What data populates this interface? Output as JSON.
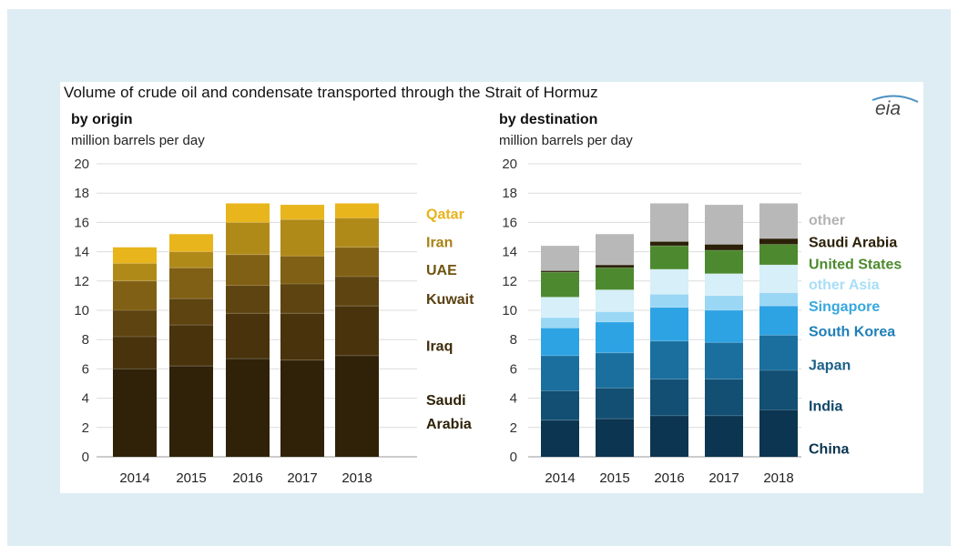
{
  "title": "Volume of crude oil and condensate transported through the Strait of Hormuz",
  "logo_text": "eia",
  "chart_data": [
    {
      "type": "bar",
      "stacked": true,
      "title": "by origin",
      "ylabel": "million barrels per day",
      "ylim": [
        0,
        20
      ],
      "yticks": [
        0,
        2,
        4,
        6,
        8,
        10,
        12,
        14,
        16,
        18,
        20
      ],
      "grid": true,
      "legend_placement": "right (inline labels)",
      "categories": [
        "2014",
        "2015",
        "2016",
        "2017",
        "2018"
      ],
      "series": [
        {
          "name": "Saudi Arabia",
          "color": "#2f2208",
          "values": [
            6.0,
            6.2,
            6.7,
            6.6,
            6.9
          ]
        },
        {
          "name": "Iraq",
          "color": "#49330c",
          "values": [
            2.2,
            2.8,
            3.1,
            3.2,
            3.4
          ]
        },
        {
          "name": "Kuwait",
          "color": "#5e4410",
          "values": [
            1.8,
            1.8,
            1.9,
            2.0,
            2.0
          ]
        },
        {
          "name": "UAE",
          "color": "#806014",
          "values": [
            2.0,
            2.1,
            2.1,
            1.9,
            2.0
          ]
        },
        {
          "name": "Iran",
          "color": "#b08a19",
          "values": [
            1.2,
            1.1,
            2.2,
            2.5,
            2.0
          ]
        },
        {
          "name": "Qatar",
          "color": "#e9b51d",
          "values": [
            1.1,
            1.2,
            1.3,
            1.0,
            1.0
          ]
        }
      ],
      "legend_labels": [
        {
          "text": "Qatar",
          "y": 16.6,
          "color": "#e6b31c"
        },
        {
          "text": "Iran",
          "y": 14.7,
          "color": "#a78214"
        },
        {
          "text": "UAE",
          "y": 12.8,
          "color": "#6f5410"
        },
        {
          "text": "Kuwait",
          "y": 10.8,
          "color": "#5a4110"
        },
        {
          "text": "Iraq",
          "y": 7.6,
          "color": "#3f2c0a"
        },
        {
          "text": "Saudi",
          "y": 3.9,
          "color": "#2f2208"
        },
        {
          "text": "Arabia",
          "y": 2.3,
          "color": "#2f2208"
        }
      ]
    },
    {
      "type": "bar",
      "stacked": true,
      "title": "by destination",
      "ylabel": "million barrels per day",
      "ylim": [
        0,
        20
      ],
      "yticks": [
        0,
        2,
        4,
        6,
        8,
        10,
        12,
        14,
        16,
        18,
        20
      ],
      "grid": true,
      "legend_placement": "right (inline labels)",
      "categories": [
        "2014",
        "2015",
        "2016",
        "2017",
        "2018"
      ],
      "series": [
        {
          "name": "China",
          "color": "#0b3550",
          "values": [
            2.5,
            2.6,
            2.8,
            2.8,
            3.2
          ]
        },
        {
          "name": "India",
          "color": "#124f73",
          "values": [
            2.0,
            2.1,
            2.5,
            2.5,
            2.7
          ]
        },
        {
          "name": "Japan",
          "color": "#1a6f9e",
          "values": [
            2.4,
            2.4,
            2.6,
            2.5,
            2.4
          ]
        },
        {
          "name": "South Korea",
          "color": "#2da3e4",
          "values": [
            1.9,
            2.1,
            2.3,
            2.2,
            2.0
          ]
        },
        {
          "name": "Singapore",
          "color": "#9ad7f4",
          "values": [
            0.7,
            0.7,
            0.9,
            1.0,
            0.9
          ]
        },
        {
          "name": "other Asia",
          "color": "#d6eff9",
          "values": [
            1.4,
            1.5,
            1.7,
            1.5,
            1.9
          ]
        },
        {
          "name": "United States",
          "color": "#4d8a2f",
          "values": [
            1.7,
            1.5,
            1.6,
            1.6,
            1.4
          ]
        },
        {
          "name": "Saudi Arabia",
          "color": "#2b2008",
          "values": [
            0.1,
            0.2,
            0.3,
            0.4,
            0.4
          ]
        },
        {
          "name": "other",
          "color": "#b8b8b8",
          "values": [
            1.7,
            2.1,
            2.6,
            2.7,
            2.4
          ]
        }
      ],
      "legend_labels": [
        {
          "text": "other",
          "y": 16.2,
          "color": "#b3b3b3"
        },
        {
          "text": "Saudi Arabia",
          "y": 14.7,
          "color": "#2b2008"
        },
        {
          "text": "United States",
          "y": 13.2,
          "color": "#4d8a2f"
        },
        {
          "text": "other Asia",
          "y": 11.8,
          "color": "#a8def6"
        },
        {
          "text": "Singapore",
          "y": 10.3,
          "color": "#37a7dd"
        },
        {
          "text": "South Korea",
          "y": 8.6,
          "color": "#1f7fb8"
        },
        {
          "text": "Japan",
          "y": 6.3,
          "color": "#1b5f88"
        },
        {
          "text": "India",
          "y": 3.5,
          "color": "#12476a"
        },
        {
          "text": "China",
          "y": 0.6,
          "color": "#0b3550"
        }
      ]
    }
  ]
}
